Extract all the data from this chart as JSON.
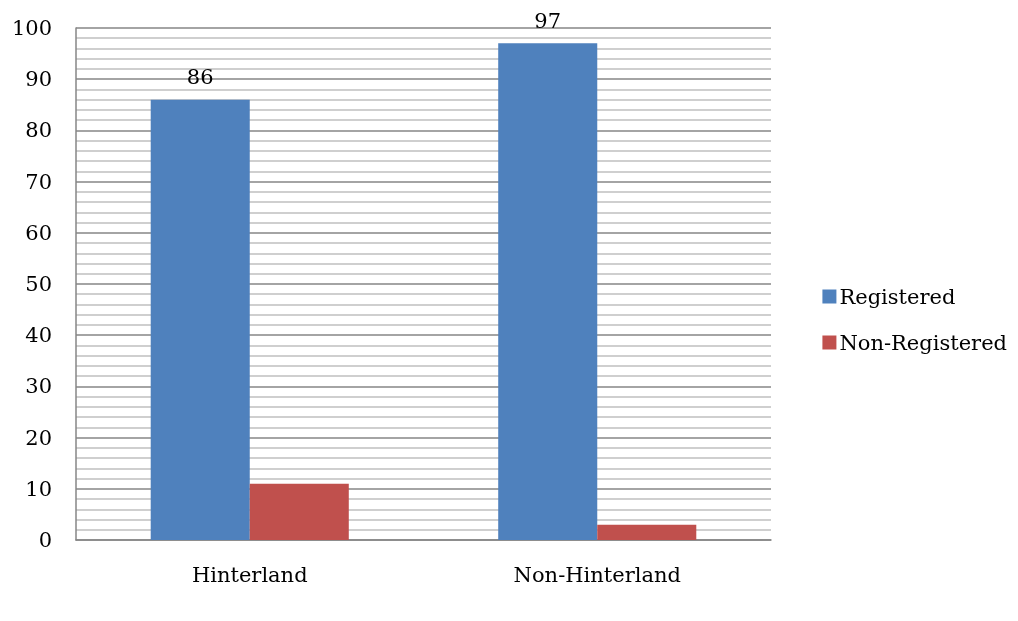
{
  "chart_data": {
    "type": "bar",
    "categories": [
      "Hinterland",
      "Non-Hinterland"
    ],
    "series": [
      {
        "name": "Registered",
        "color": "#4f81bd",
        "values": [
          86,
          97
        ],
        "value_labels": [
          "86",
          "97"
        ]
      },
      {
        "name": "Non-Registered",
        "color": "#c0504d",
        "values": [
          11,
          3
        ]
      }
    ],
    "ylim": [
      0,
      100
    ],
    "yticks": [
      0,
      10,
      20,
      30,
      40,
      50,
      60,
      70,
      80,
      90,
      100
    ],
    "grid": "y",
    "legend": "right"
  }
}
